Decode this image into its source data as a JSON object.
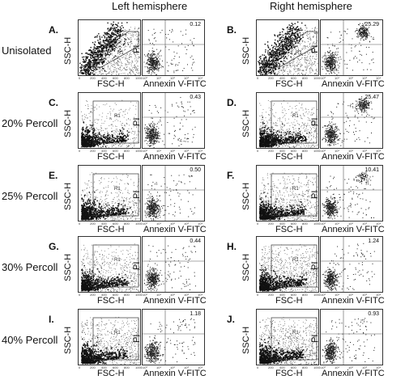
{
  "columns": {
    "left": "Left hemisphere",
    "right": "Right hemisphere"
  },
  "axis_labels": {
    "scatter_y": "SSC-H",
    "scatter_x": "FSC-H",
    "annexin_y": "PI",
    "annexin_x": "Annexin V-FITC"
  },
  "gate_label": "R1",
  "tick_labels": {
    "linear": [
      "0",
      "200",
      "400",
      "600",
      "800",
      "1000"
    ],
    "log": [
      "10⁰",
      "10¹",
      "10²",
      "10³",
      "10⁴"
    ]
  },
  "rows": [
    {
      "label": "Unisolated",
      "left_letter": "A.",
      "right_letter": "B.",
      "left_pct": "0.12",
      "right_pct": "25.29"
    },
    {
      "label": "20% Percoll",
      "left_letter": "C.",
      "right_letter": "D.",
      "left_pct": "0.43",
      "right_pct": "25.47"
    },
    {
      "label": "25% Percoll",
      "left_letter": "E.",
      "right_letter": "F.",
      "left_pct": "0.50",
      "right_pct": "10.41"
    },
    {
      "label": "30% Percoll",
      "left_letter": "G.",
      "right_letter": "H.",
      "left_pct": "0.44",
      "right_pct": "1.24"
    },
    {
      "label": "40% Percoll",
      "left_letter": "I.",
      "right_letter": "J.",
      "left_pct": "1.18",
      "right_pct": "0.93"
    }
  ]
}
